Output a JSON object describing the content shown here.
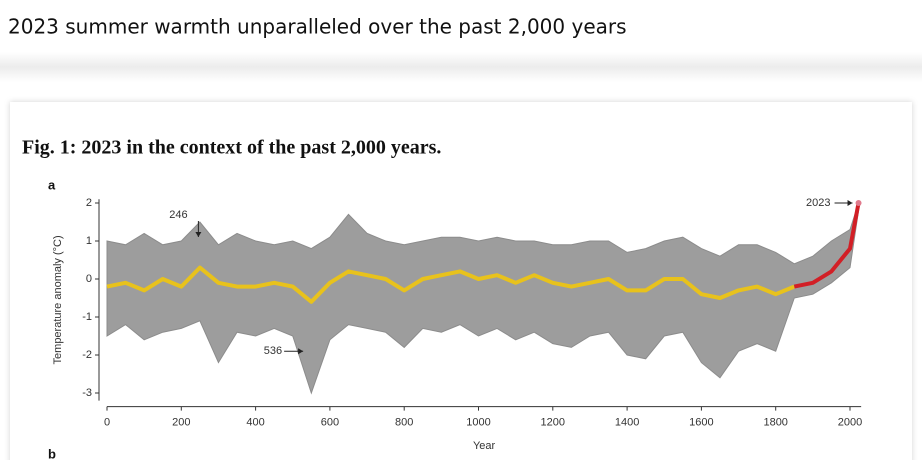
{
  "header": {
    "title": "2023 summer warmth unparalleled over the past 2,000 years"
  },
  "figure": {
    "caption": "Fig. 1: 2023 in the context of the past 2,000 years.",
    "panels": [
      "a",
      "b"
    ]
  },
  "chart_data": {
    "type": "line",
    "x_label": "Year",
    "y_label": "Temperature anomaly (°C)",
    "x": [
      0,
      50,
      100,
      150,
      200,
      250,
      300,
      350,
      400,
      450,
      500,
      550,
      600,
      650,
      700,
      750,
      800,
      850,
      900,
      950,
      1000,
      1050,
      1100,
      1150,
      1200,
      1250,
      1300,
      1350,
      1400,
      1450,
      1500,
      1550,
      1600,
      1650,
      1700,
      1750,
      1800,
      1850,
      1900,
      1950,
      2000,
      2023
    ],
    "series": [
      {
        "color": "#8c8c8c",
        "high": [
          1.0,
          0.9,
          1.2,
          0.9,
          1.0,
          1.5,
          0.9,
          1.2,
          1.0,
          0.9,
          1.0,
          0.8,
          1.1,
          1.7,
          1.2,
          1.0,
          0.9,
          1.0,
          1.1,
          1.1,
          1.0,
          1.1,
          1.0,
          1.0,
          0.9,
          0.9,
          1.0,
          1.0,
          0.7,
          0.8,
          1.0,
          1.1,
          0.8,
          0.6,
          0.9,
          0.9,
          0.7,
          0.4,
          0.6,
          1.0,
          1.3,
          2.0
        ],
        "low": [
          -1.5,
          -1.2,
          -1.6,
          -1.4,
          -1.3,
          -1.1,
          -2.2,
          -1.4,
          -1.5,
          -1.3,
          -1.5,
          -3.0,
          -1.6,
          -1.2,
          -1.3,
          -1.4,
          -1.8,
          -1.3,
          -1.4,
          -1.2,
          -1.5,
          -1.3,
          -1.6,
          -1.4,
          -1.7,
          -1.8,
          -1.5,
          -1.4,
          -2.0,
          -2.1,
          -1.5,
          -1.4,
          -2.2,
          -2.6,
          -1.9,
          -1.7,
          -1.9,
          -0.5,
          -0.4,
          -0.1,
          0.3,
          1.8
        ]
      },
      {
        "color": "#e8c21c",
        "values": [
          -0.2,
          -0.1,
          -0.3,
          0.0,
          -0.2,
          0.3,
          -0.1,
          -0.2,
          -0.2,
          -0.1,
          -0.2,
          -0.6,
          -0.1,
          0.2,
          0.1,
          0.0,
          -0.3,
          0.0,
          0.1,
          0.2,
          0.0,
          0.1,
          -0.1,
          0.1,
          -0.1,
          -0.2,
          -0.1,
          0.0,
          -0.3,
          -0.3,
          0.0,
          0.0,
          -0.4,
          -0.5,
          -0.3,
          -0.2,
          -0.4,
          -0.2,
          null,
          null,
          null,
          null
        ]
      },
      {
        "color": "#d21f26",
        "values": [
          null,
          null,
          null,
          null,
          null,
          null,
          null,
          null,
          null,
          null,
          null,
          null,
          null,
          null,
          null,
          null,
          null,
          null,
          null,
          null,
          null,
          null,
          null,
          null,
          null,
          null,
          null,
          null,
          null,
          null,
          null,
          null,
          null,
          null,
          null,
          null,
          null,
          -0.2,
          -0.1,
          0.2,
          0.8,
          2.0
        ]
      }
    ],
    "annotations": [
      {
        "text": "246",
        "x": 246,
        "y": 1.0
      },
      {
        "text": "536",
        "x": 536,
        "y": -1.9
      },
      {
        "text": "2023",
        "x": 2023,
        "y": 2.0
      }
    ],
    "xlim": [
      0,
      2030
    ],
    "ylim": [
      -3.2,
      2.1
    ],
    "xticks": [
      0,
      200,
      400,
      600,
      800,
      1000,
      1200,
      1400,
      1600,
      1800,
      2000
    ],
    "yticks": [
      -3,
      -2,
      -1,
      0,
      1,
      2
    ],
    "grid": false
  }
}
